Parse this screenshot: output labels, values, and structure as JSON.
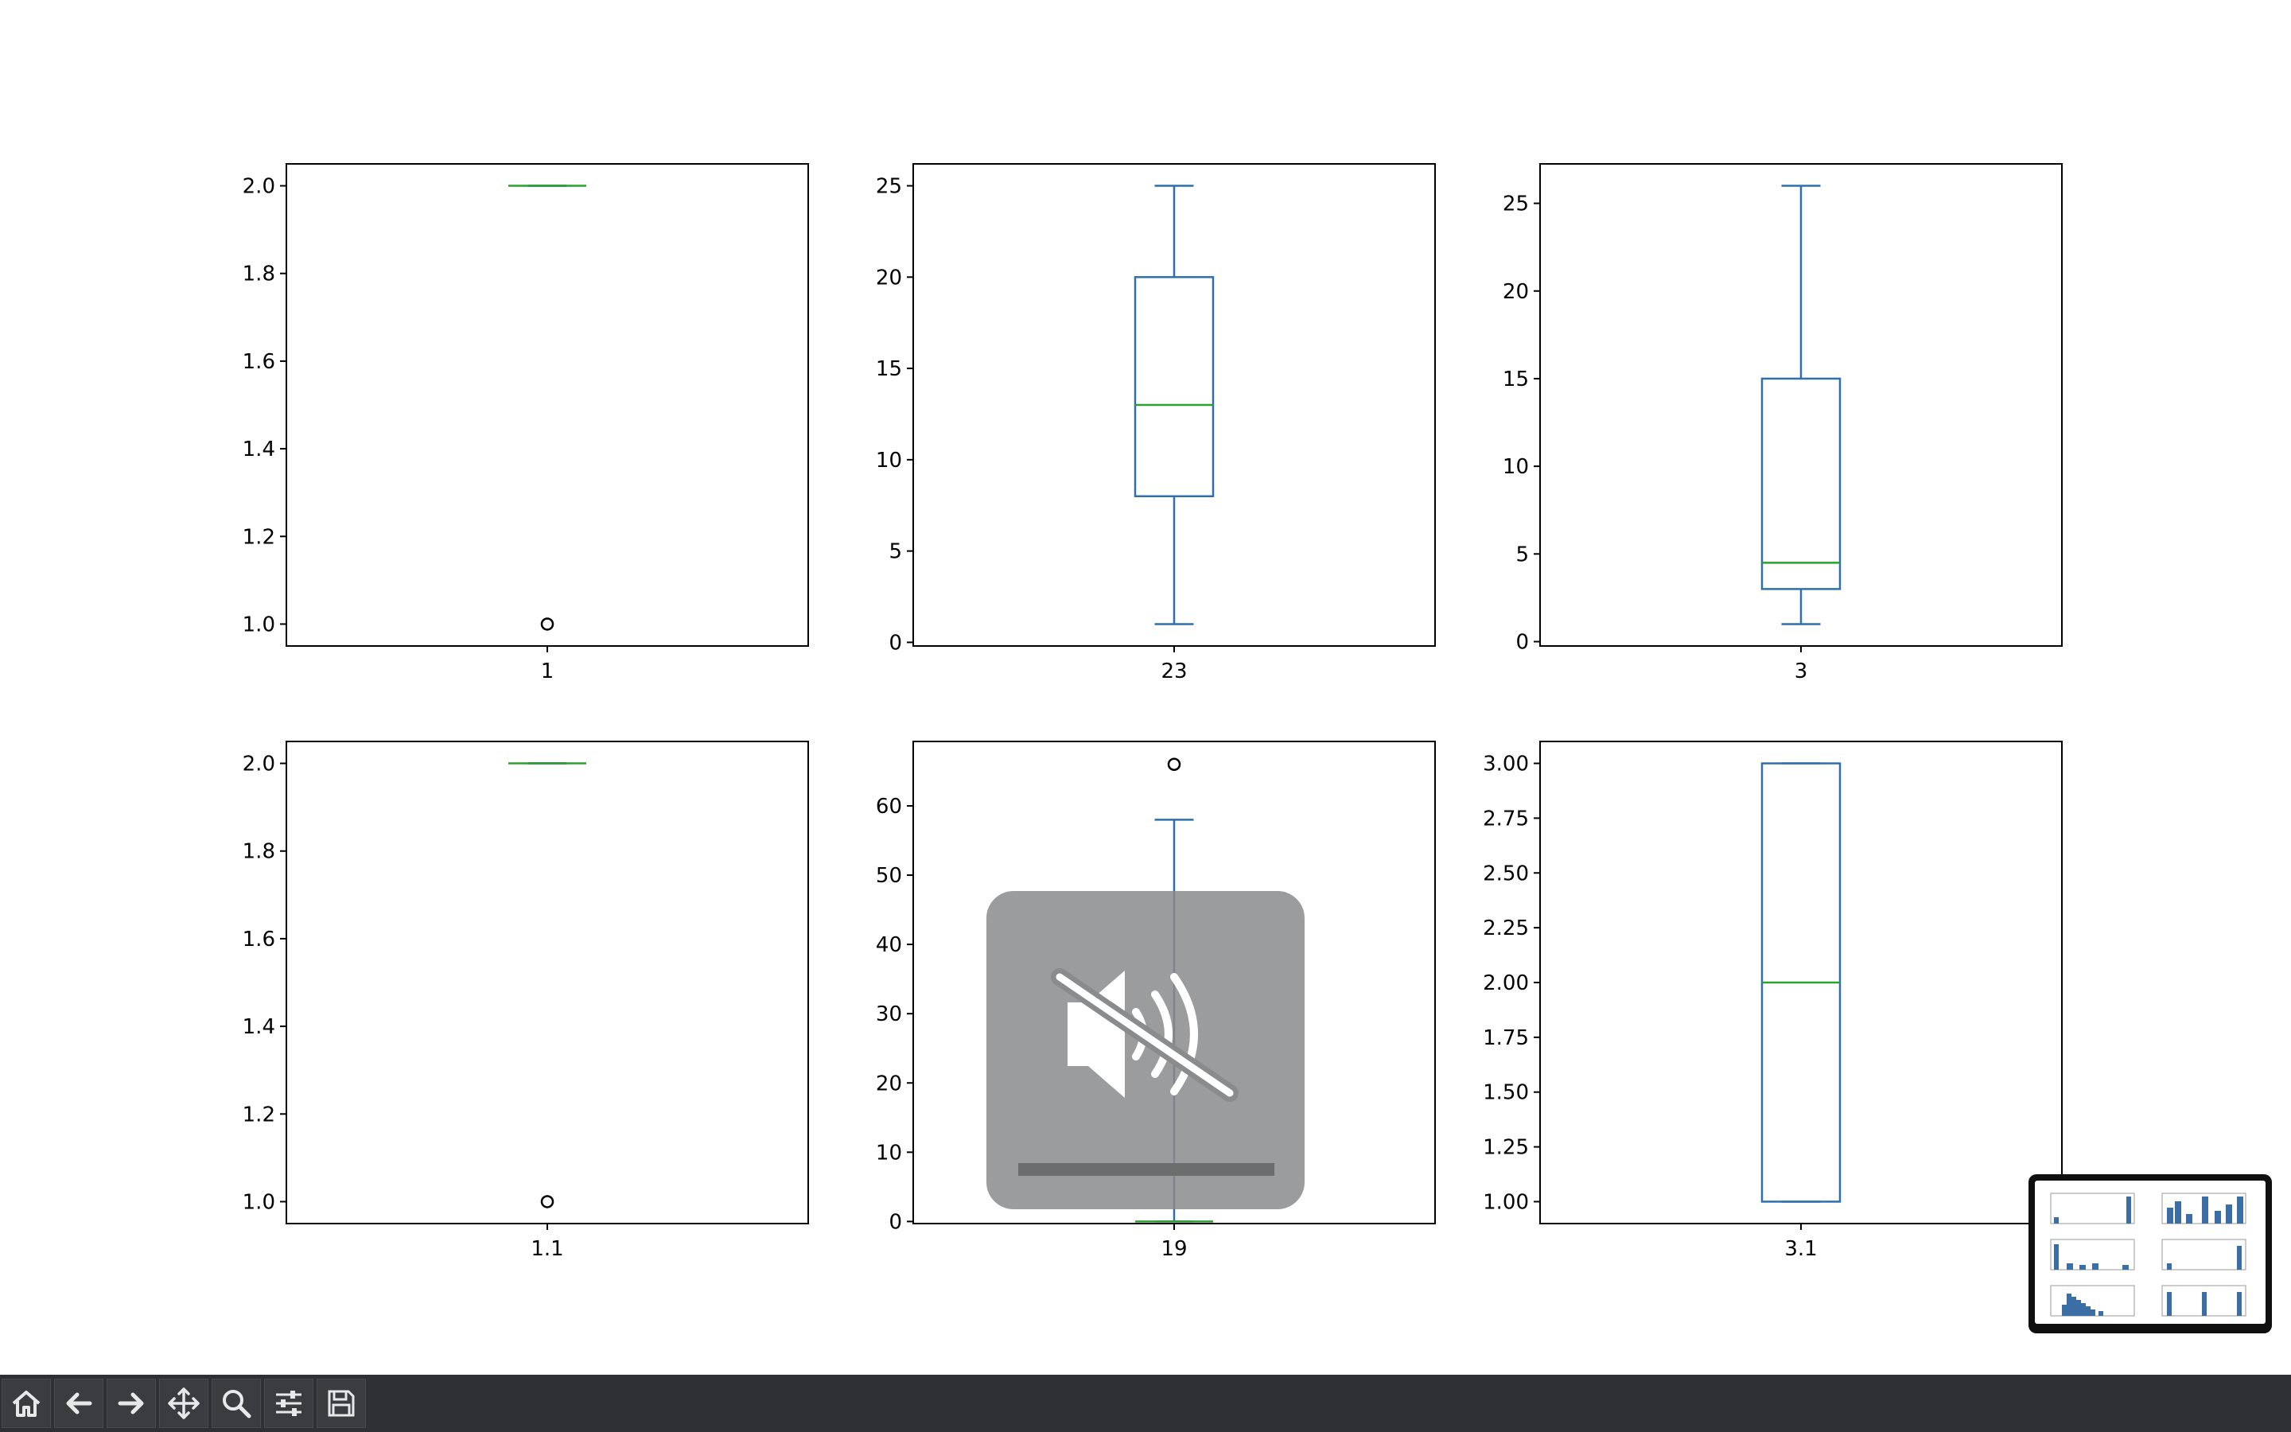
{
  "chart_data": [
    {
      "type": "box",
      "label": "1",
      "whislo": 2.0,
      "q1": 2.0,
      "med": 2.0,
      "q3": 2.0,
      "whishi": 2.0,
      "fliers": [
        1.0
      ],
      "ylim": [
        0.95,
        2.05
      ],
      "ticks": [
        1.0,
        1.2,
        1.4,
        1.6,
        1.8,
        2.0
      ],
      "tick_labels": [
        "1.0",
        "1.2",
        "1.4",
        "1.6",
        "1.8",
        "2.0"
      ]
    },
    {
      "type": "box",
      "label": "23",
      "whislo": 1,
      "q1": 8,
      "med": 13,
      "q3": 20,
      "whishi": 25,
      "fliers": [],
      "ylim": [
        -0.2,
        26.2
      ],
      "ticks": [
        0,
        5,
        10,
        15,
        20,
        25
      ],
      "tick_labels": [
        "0",
        "5",
        "10",
        "15",
        "20",
        "25"
      ]
    },
    {
      "type": "box",
      "label": "3",
      "whislo": 1,
      "q1": 3,
      "med": 4.5,
      "q3": 15,
      "whishi": 26,
      "fliers": [],
      "ylim": [
        -0.25,
        27.25
      ],
      "ticks": [
        0,
        5,
        10,
        15,
        20,
        25
      ],
      "tick_labels": [
        "0",
        "5",
        "10",
        "15",
        "20",
        "25"
      ]
    },
    {
      "type": "box",
      "label": "1.1",
      "whislo": 2.0,
      "q1": 2.0,
      "med": 2.0,
      "q3": 2.0,
      "whishi": 2.0,
      "fliers": [
        1.0
      ],
      "ylim": [
        0.95,
        2.05
      ],
      "ticks": [
        1.0,
        1.2,
        1.4,
        1.6,
        1.8,
        2.0
      ],
      "tick_labels": [
        "1.0",
        "1.2",
        "1.4",
        "1.6",
        "1.8",
        "2.0"
      ]
    },
    {
      "type": "box",
      "label": "19",
      "whislo": 0,
      "q1": 0,
      "med": 0,
      "q3": 0,
      "whishi": 58,
      "fliers": [
        66
      ],
      "ylim": [
        -0.3,
        69.3
      ],
      "ticks": [
        0,
        10,
        20,
        30,
        40,
        50,
        60
      ],
      "tick_labels": [
        "0",
        "10",
        "20",
        "30",
        "40",
        "50",
        "60"
      ]
    },
    {
      "type": "box",
      "label": "3.1",
      "whislo": 1.0,
      "q1": 1.0,
      "med": 2.0,
      "q3": 3.0,
      "whishi": 3.0,
      "fliers": [],
      "ylim": [
        0.9,
        3.1
      ],
      "ticks": [
        1.0,
        1.25,
        1.5,
        1.75,
        2.0,
        2.25,
        2.5,
        2.75,
        3.0
      ],
      "tick_labels": [
        "1.00",
        "1.25",
        "1.50",
        "1.75",
        "2.00",
        "2.25",
        "2.50",
        "2.75",
        "3.00"
      ]
    }
  ],
  "colors": {
    "box": "#2f6fae",
    "median": "#2ca02c",
    "flier": "#000000",
    "axes": "#000000"
  },
  "toolbar": {
    "buttons": [
      {
        "name": "home-button",
        "icon": "home-icon"
      },
      {
        "name": "back-button",
        "icon": "arrow-left-icon"
      },
      {
        "name": "forward-button",
        "icon": "arrow-right-icon"
      },
      {
        "name": "pan-button",
        "icon": "move-icon"
      },
      {
        "name": "zoom-button",
        "icon": "magnifier-icon"
      },
      {
        "name": "configure-subplots-button",
        "icon": "sliders-icon"
      },
      {
        "name": "save-button",
        "icon": "floppy-disk-icon"
      }
    ]
  },
  "overlays": {
    "mute_indicator": "speaker-muted-icon",
    "thumbnail": "screenshot-thumbnail"
  }
}
